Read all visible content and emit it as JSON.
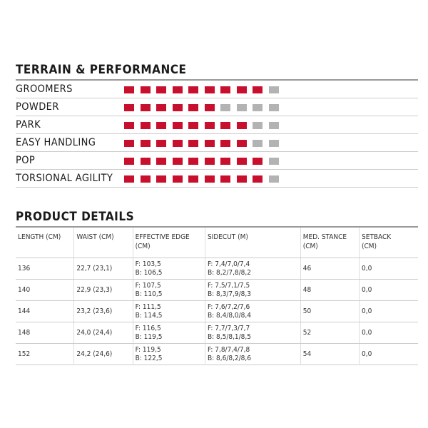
{
  "terrain": {
    "title": "TERRAIN & PERFORMANCE",
    "max": 10,
    "active_color": "#c8102e",
    "inactive_color": "#b3b3b3",
    "items": [
      {
        "label": "GROOMERS",
        "rating": 9
      },
      {
        "label": "POWDER",
        "rating": 6
      },
      {
        "label": "PARK",
        "rating": 8
      },
      {
        "label": "EASY HANDLING",
        "rating": 8
      },
      {
        "label": "POP",
        "rating": 9
      },
      {
        "label": "TORSIONAL AGILITY",
        "rating": 9
      }
    ]
  },
  "details": {
    "title": "PRODUCT DETAILS",
    "headers": [
      [
        "LENGTH (CM)"
      ],
      [
        "WAIST (CM)"
      ],
      [
        "EFFECTIVE EDGE",
        "(CM)"
      ],
      [
        "SIDECUT (M)"
      ],
      [
        "MED. STANCE",
        "(CM)"
      ],
      [
        "SETBACK",
        "(CM)"
      ]
    ],
    "rows": [
      [
        [
          "136"
        ],
        [
          "22,7 (23,1)"
        ],
        [
          "F: 103,5",
          "B: 106,5"
        ],
        [
          "F: 7,4/7,0/7,4",
          "B: 8,2/7,8/8,2"
        ],
        [
          "46"
        ],
        [
          "0,0"
        ]
      ],
      [
        [
          "140"
        ],
        [
          "22,9 (23,3)"
        ],
        [
          "F: 107,5",
          "B: 110,5"
        ],
        [
          "F: 7,5/7,1/7,5",
          "B: 8,3/7,9/8,3"
        ],
        [
          "48"
        ],
        [
          "0,0"
        ]
      ],
      [
        [
          "144"
        ],
        [
          "23,2 (23,6)"
        ],
        [
          "F: 111,5",
          "B: 114,5"
        ],
        [
          "F: 7,6/7,2/7,6",
          "B: 8,4/8,0/8,4"
        ],
        [
          "50"
        ],
        [
          "0,0"
        ]
      ],
      [
        [
          "148"
        ],
        [
          "24,0 (24,4)"
        ],
        [
          "F: 116,5",
          "B: 119,5"
        ],
        [
          "F: 7,7/7,3/7,7",
          "B: 8,5/8,1/8,5"
        ],
        [
          "52"
        ],
        [
          "0,0"
        ]
      ],
      [
        [
          "152"
        ],
        [
          "24,2 (24,6)"
        ],
        [
          "F: 119,5",
          "B: 122,5"
        ],
        [
          "F: 7,8/7,4/7,8",
          "B: 8,6/8,2/8,6"
        ],
        [
          "54"
        ],
        [
          "0,0"
        ]
      ]
    ]
  }
}
